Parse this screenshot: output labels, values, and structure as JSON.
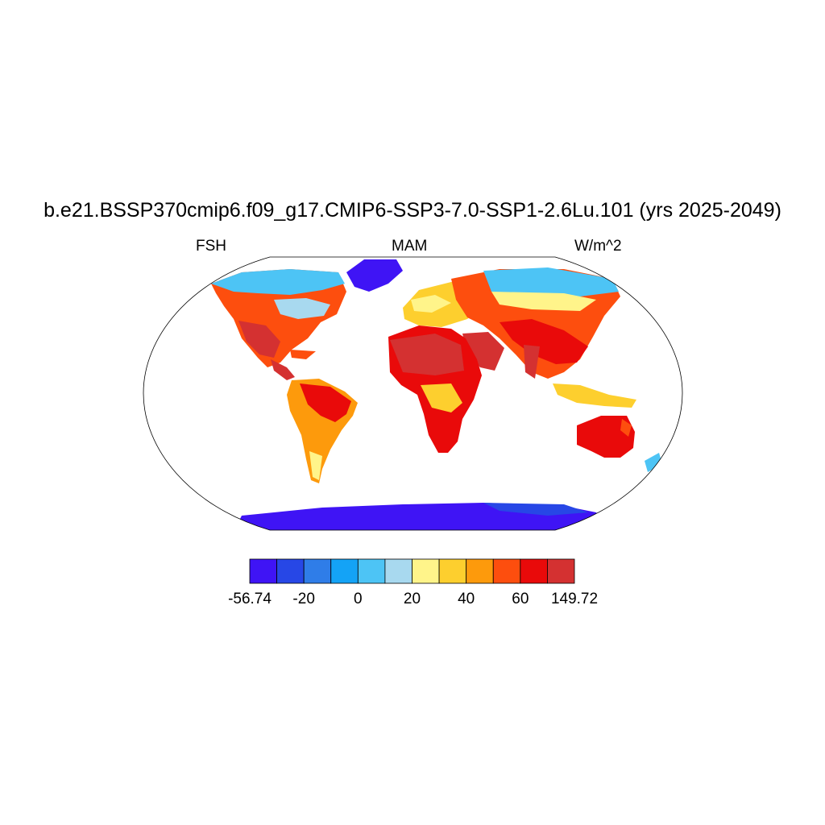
{
  "title": "b.e21.BSSP370cmip6.f09_g17.CMIP6-SSP3-7.0-SSP1-2.6Lu.101 (yrs 2025-2049)",
  "left_string": "FSH",
  "center_string": "MAM",
  "right_string": "W/m^2",
  "colorbar": {
    "colors": [
      "#3f14f5",
      "#2747e6",
      "#2f7de8",
      "#14a3f6",
      "#4dc4f5",
      "#a8d9ef",
      "#fff48a",
      "#fdcf2e",
      "#fd9a0c",
      "#fd4e0e",
      "#e90a0a",
      "#d43131"
    ],
    "labels": [
      "-56.74",
      "-20",
      "0",
      "20",
      "40",
      "60",
      "149.72"
    ]
  }
}
